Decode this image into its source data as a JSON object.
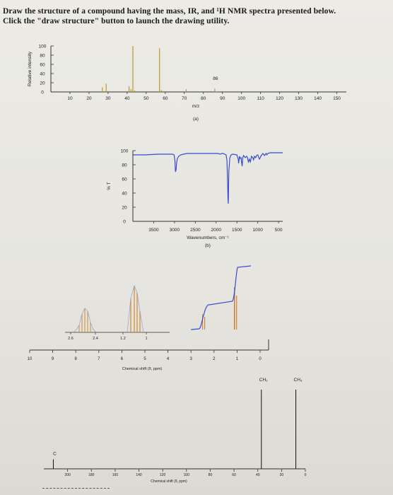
{
  "header": {
    "line1": "Draw the structure of a compound having the mass, IR, and ¹H NMR spectra presented below.",
    "line2": "Click the \"draw structure\" button to launch the drawing utility."
  },
  "chart_data": [
    {
      "id": "mass",
      "type": "bar",
      "ylabel": "Relative intensity",
      "xlabel": "m/z",
      "caption": "(a)",
      "xlim": [
        0,
        155
      ],
      "ylim": [
        0,
        100
      ],
      "x_ticks": [
        10,
        20,
        30,
        40,
        50,
        60,
        70,
        80,
        90,
        100,
        110,
        120,
        130,
        140,
        150
      ],
      "y_ticks": [
        0,
        20,
        40,
        60,
        80,
        100
      ],
      "x": [
        27,
        29,
        41,
        42,
        43,
        44,
        57,
        58,
        71,
        86,
        87
      ],
      "values": [
        10,
        18,
        12,
        6,
        100,
        3,
        95,
        4,
        6,
        7,
        1
      ],
      "annotations": [
        {
          "x": 86,
          "text": "86"
        }
      ]
    },
    {
      "id": "ir",
      "type": "line",
      "ylabel": "% T",
      "xlabel": "Wavenumbers, cm⁻¹",
      "caption": "(b)",
      "xlim": [
        4000,
        400
      ],
      "ylim": [
        0,
        100
      ],
      "x_ticks": [
        3500,
        3000,
        2500,
        2000,
        1500,
        1000,
        500
      ],
      "y_ticks": [
        0,
        20,
        40,
        60,
        80,
        100
      ],
      "x": [
        4000,
        3700,
        3400,
        3050,
        3010,
        2990,
        2980,
        2975,
        2960,
        2950,
        2935,
        2920,
        2900,
        2850,
        2780,
        2700,
        2400,
        2100,
        1960,
        1900,
        1860,
        1830,
        1800,
        1760,
        1740,
        1725,
        1715,
        1710,
        1705,
        1695,
        1670,
        1640,
        1600,
        1500,
        1470,
        1460,
        1440,
        1420,
        1400,
        1390,
        1375,
        1365,
        1360,
        1340,
        1300,
        1270,
        1250,
        1225,
        1200,
        1180,
        1170,
        1150,
        1120,
        1100,
        1080,
        1050,
        1030,
        1000,
        960,
        940,
        920,
        900,
        880,
        860,
        840,
        800,
        780,
        760,
        700,
        650,
        600,
        550,
        500,
        450,
        400
      ],
      "y": [
        94,
        94,
        95,
        95,
        94,
        86,
        72,
        70,
        74,
        82,
        88,
        90,
        92,
        94,
        95,
        96,
        96,
        96,
        96,
        95,
        96,
        96,
        95,
        94,
        86,
        55,
        30,
        25,
        32,
        70,
        90,
        94,
        95,
        94,
        88,
        82,
        92,
        89,
        90,
        84,
        78,
        86,
        90,
        93,
        90,
        92,
        91,
        84,
        88,
        84,
        86,
        92,
        90,
        87,
        92,
        90,
        93,
        94,
        88,
        90,
        93,
        94,
        96,
        95,
        93,
        96,
        94,
        96,
        97,
        97,
        97,
        97,
        97,
        97,
        97
      ]
    },
    {
      "id": "h1nmr",
      "type": "line",
      "xlabel": "Chemical shift (δ, ppm)",
      "xlim": [
        10,
        0
      ],
      "x_ticks": [
        10,
        9,
        8,
        7,
        6,
        5,
        4,
        3,
        2,
        1,
        0
      ],
      "inset_ticks": [
        2.6,
        2.4,
        1.2,
        1.0
      ],
      "peaks": [
        {
          "shift": 2.45,
          "multiplicity": "quartet",
          "integral": 2
        },
        {
          "shift": 1.05,
          "multiplicity": "triplet",
          "integral": 3
        }
      ]
    },
    {
      "id": "c13nmr",
      "type": "bar",
      "xlabel": "Chemical shift (δ, ppm)",
      "xlim": [
        220,
        0
      ],
      "x_ticks": [
        200,
        180,
        160,
        140,
        120,
        100,
        80,
        60,
        40,
        20,
        0
      ],
      "x": [
        212,
        37,
        8
      ],
      "values": [
        12,
        100,
        100
      ],
      "labels": [
        "C",
        "CH₂",
        "CH₃"
      ]
    }
  ]
}
